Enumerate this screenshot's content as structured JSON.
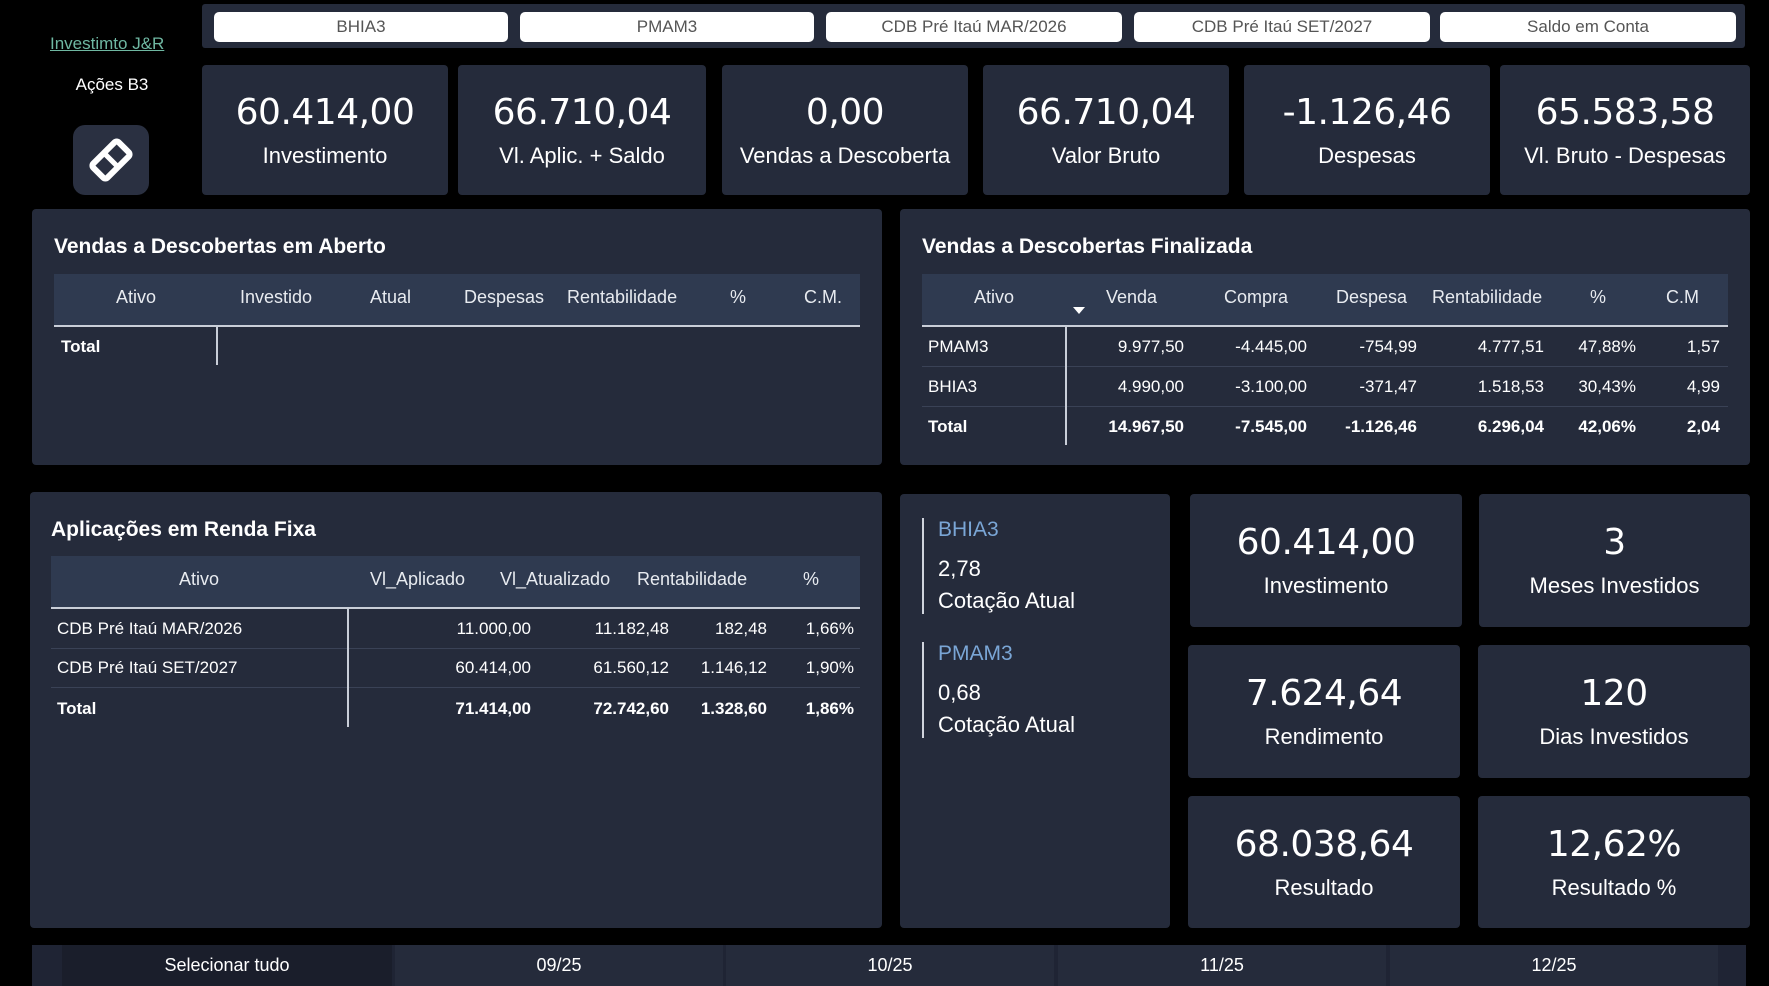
{
  "sidebar": {
    "link": "Investimto J&R",
    "subtitle": "Ações B3",
    "logo_icon": "diamond-logo-icon"
  },
  "top_slicer": [
    "BHIA3",
    "PMAM3",
    "CDB Pré Itaú MAR/2026",
    "CDB Pré Itaú SET/2027",
    "Saldo em Conta"
  ],
  "kpis": [
    {
      "value": "60.414,00",
      "label": "Investimento"
    },
    {
      "value": "66.710,04",
      "label": "Vl. Aplic. + Saldo"
    },
    {
      "value": "0,00",
      "label": "Vendas a Descoberta"
    },
    {
      "value": "66.710,04",
      "label": "Valor Bruto"
    },
    {
      "value": "-1.126,46",
      "label": "Despesas"
    },
    {
      "value": "65.583,58",
      "label": "Vl. Bruto - Despesas"
    }
  ],
  "aberto": {
    "title": "Vendas a Descobertas em Aberto",
    "headers": [
      "Ativo",
      "Investido",
      "Atual",
      "Despesas",
      "Rentabilidade",
      "%",
      "C.M."
    ],
    "total_label": "Total"
  },
  "finalizada": {
    "title": "Vendas a Descobertas Finalizada",
    "headers": [
      "Ativo",
      "Venda",
      "Compra",
      "Despesa",
      "Rentabilidade",
      "%",
      "C.M"
    ],
    "rows": [
      [
        "PMAM3",
        "9.977,50",
        "-4.445,00",
        "-754,99",
        "4.777,51",
        "47,88%",
        "1,57"
      ],
      [
        "BHIA3",
        "4.990,00",
        "-3.100,00",
        "-371,47",
        "1.518,53",
        "30,43%",
        "4,99"
      ]
    ],
    "total": [
      "Total",
      "14.967,50",
      "-7.545,00",
      "-1.126,46",
      "6.296,04",
      "42,06%",
      "2,04"
    ]
  },
  "renda_fixa": {
    "title": "Aplicações em Renda Fixa",
    "headers": [
      "Ativo",
      "Vl_Aplicado",
      "Vl_Atualizado",
      "Rentabilidade",
      "%"
    ],
    "rows": [
      [
        "CDB Pré Itaú MAR/2026",
        "11.000,00",
        "11.182,48",
        "182,48",
        "1,66%"
      ],
      [
        "CDB Pré Itaú SET/2027",
        "60.414,00",
        "61.560,12",
        "1.146,12",
        "1,90%"
      ]
    ],
    "total": [
      "Total",
      "71.414,00",
      "72.742,60",
      "1.328,60",
      "1,86%"
    ]
  },
  "cotacoes": [
    {
      "ticker": "BHIA3",
      "value": "2,78",
      "label": "Cotação Atual"
    },
    {
      "ticker": "PMAM3",
      "value": "0,68",
      "label": "Cotação Atual"
    }
  ],
  "stats": [
    {
      "value": "60.414,00",
      "label": "Investimento"
    },
    {
      "value": "3",
      "label": "Meses Investidos"
    },
    {
      "value": "7.624,64",
      "label": "Rendimento"
    },
    {
      "value": "120",
      "label": "Dias Investidos"
    },
    {
      "value": "68.038,64",
      "label": "Resultado"
    },
    {
      "value": "12,62%",
      "label": "Resultado %"
    }
  ],
  "bottom_slicer": [
    "Selecionar tudo",
    "09/25",
    "10/25",
    "11/25",
    "12/25"
  ]
}
